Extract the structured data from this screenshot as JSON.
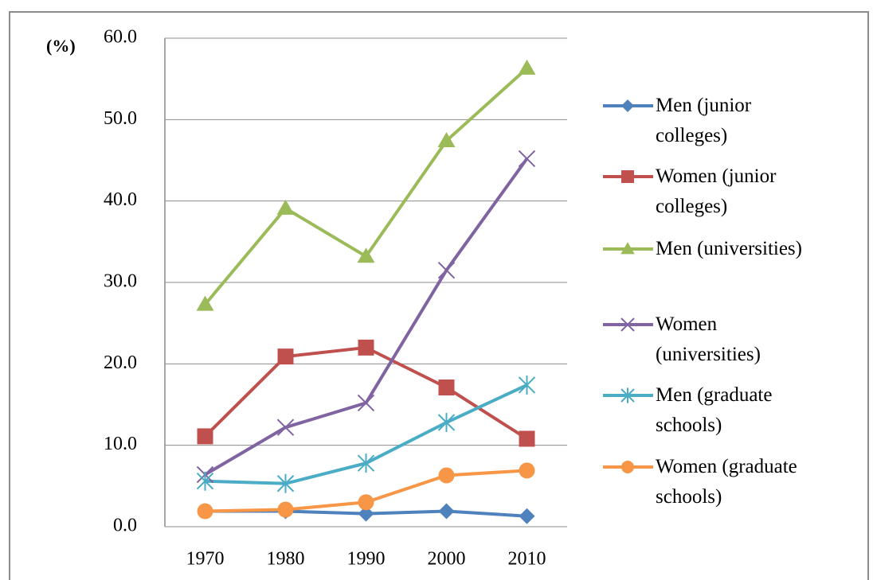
{
  "chart_data": {
    "type": "line",
    "y_label": "(%)",
    "categories": [
      "1970",
      "1980",
      "1990",
      "2000",
      "2010"
    ],
    "series": [
      {
        "name": "Men (junior colleges)",
        "color": "#4f81bd",
        "marker": "diamond",
        "values": [
          1.9,
          1.9,
          1.6,
          1.9,
          1.3
        ]
      },
      {
        "name": "Women (junior colleges)",
        "color": "#c0504d",
        "marker": "square",
        "values": [
          11.1,
          20.9,
          22.0,
          17.1,
          10.8
        ]
      },
      {
        "name": "Men (universities)",
        "color": "#9bbb59",
        "marker": "triangle",
        "values": [
          27.3,
          39.1,
          33.2,
          47.4,
          56.3
        ]
      },
      {
        "name": "Women (universities)",
        "color": "#8064a2",
        "marker": "x",
        "values": [
          6.4,
          12.2,
          15.2,
          31.5,
          45.2
        ]
      },
      {
        "name": "Men (graduate schools)",
        "color": "#4bacc6",
        "marker": "star",
        "values": [
          5.6,
          5.3,
          7.8,
          12.8,
          17.4
        ]
      },
      {
        "name": "Women (graduate schools)",
        "color": "#f79646",
        "marker": "circle",
        "values": [
          1.9,
          2.1,
          3.0,
          6.3,
          6.9
        ]
      }
    ],
    "ylim": [
      0,
      60
    ],
    "yticks": [
      {
        "value": 0,
        "label": "0.0"
      },
      {
        "value": 10,
        "label": "10.0"
      },
      {
        "value": 20,
        "label": "20.0"
      },
      {
        "value": 30,
        "label": "30.0"
      },
      {
        "value": 40,
        "label": "40.0"
      },
      {
        "value": 50,
        "label": "50.0"
      },
      {
        "value": 60,
        "label": "60.0"
      }
    ],
    "grid": true,
    "legend": "right"
  }
}
